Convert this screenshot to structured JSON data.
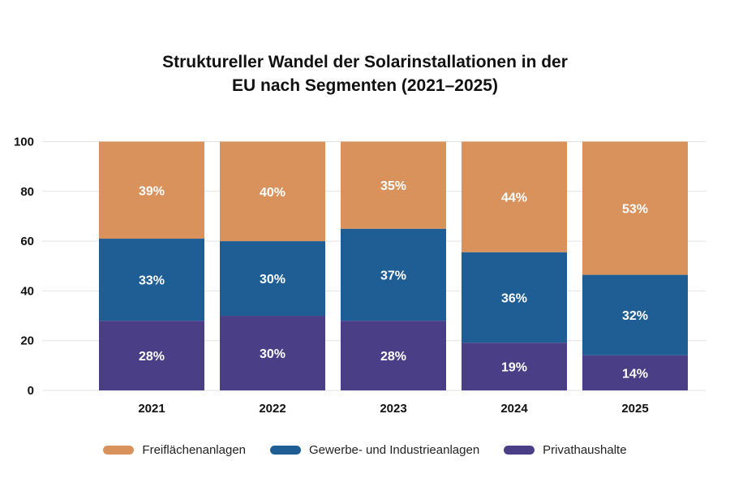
{
  "chart_data": {
    "type": "bar",
    "stacked": true,
    "title": [
      "Struktureller Wandel der Solarinstallationen in der",
      "EU nach Segmenten (2021–2025)"
    ],
    "categories": [
      "2021",
      "2022",
      "2023",
      "2024",
      "2025"
    ],
    "series": [
      {
        "name": "Privathaushalte",
        "color": "#4A3F86",
        "values": [
          28,
          30,
          28,
          19,
          14
        ]
      },
      {
        "name": "Gewerbe- und Industrieanlagen",
        "color": "#1F5E94",
        "values": [
          33,
          30,
          37,
          36,
          32
        ]
      },
      {
        "name": "Freiflächenanlagen",
        "color": "#D9925B",
        "values": [
          39,
          40,
          35,
          44,
          53
        ]
      }
    ],
    "ylim": [
      0,
      100
    ],
    "yticks": [
      "0",
      "20",
      "40",
      "60",
      "80",
      "100"
    ],
    "value_suffix": "%",
    "grid": true,
    "legend_position": "bottom",
    "legend_order": [
      "Freiflächenanlagen",
      "Gewerbe- und Industrieanlagen",
      "Privathaushalte"
    ],
    "xlabel": "",
    "ylabel": ""
  }
}
